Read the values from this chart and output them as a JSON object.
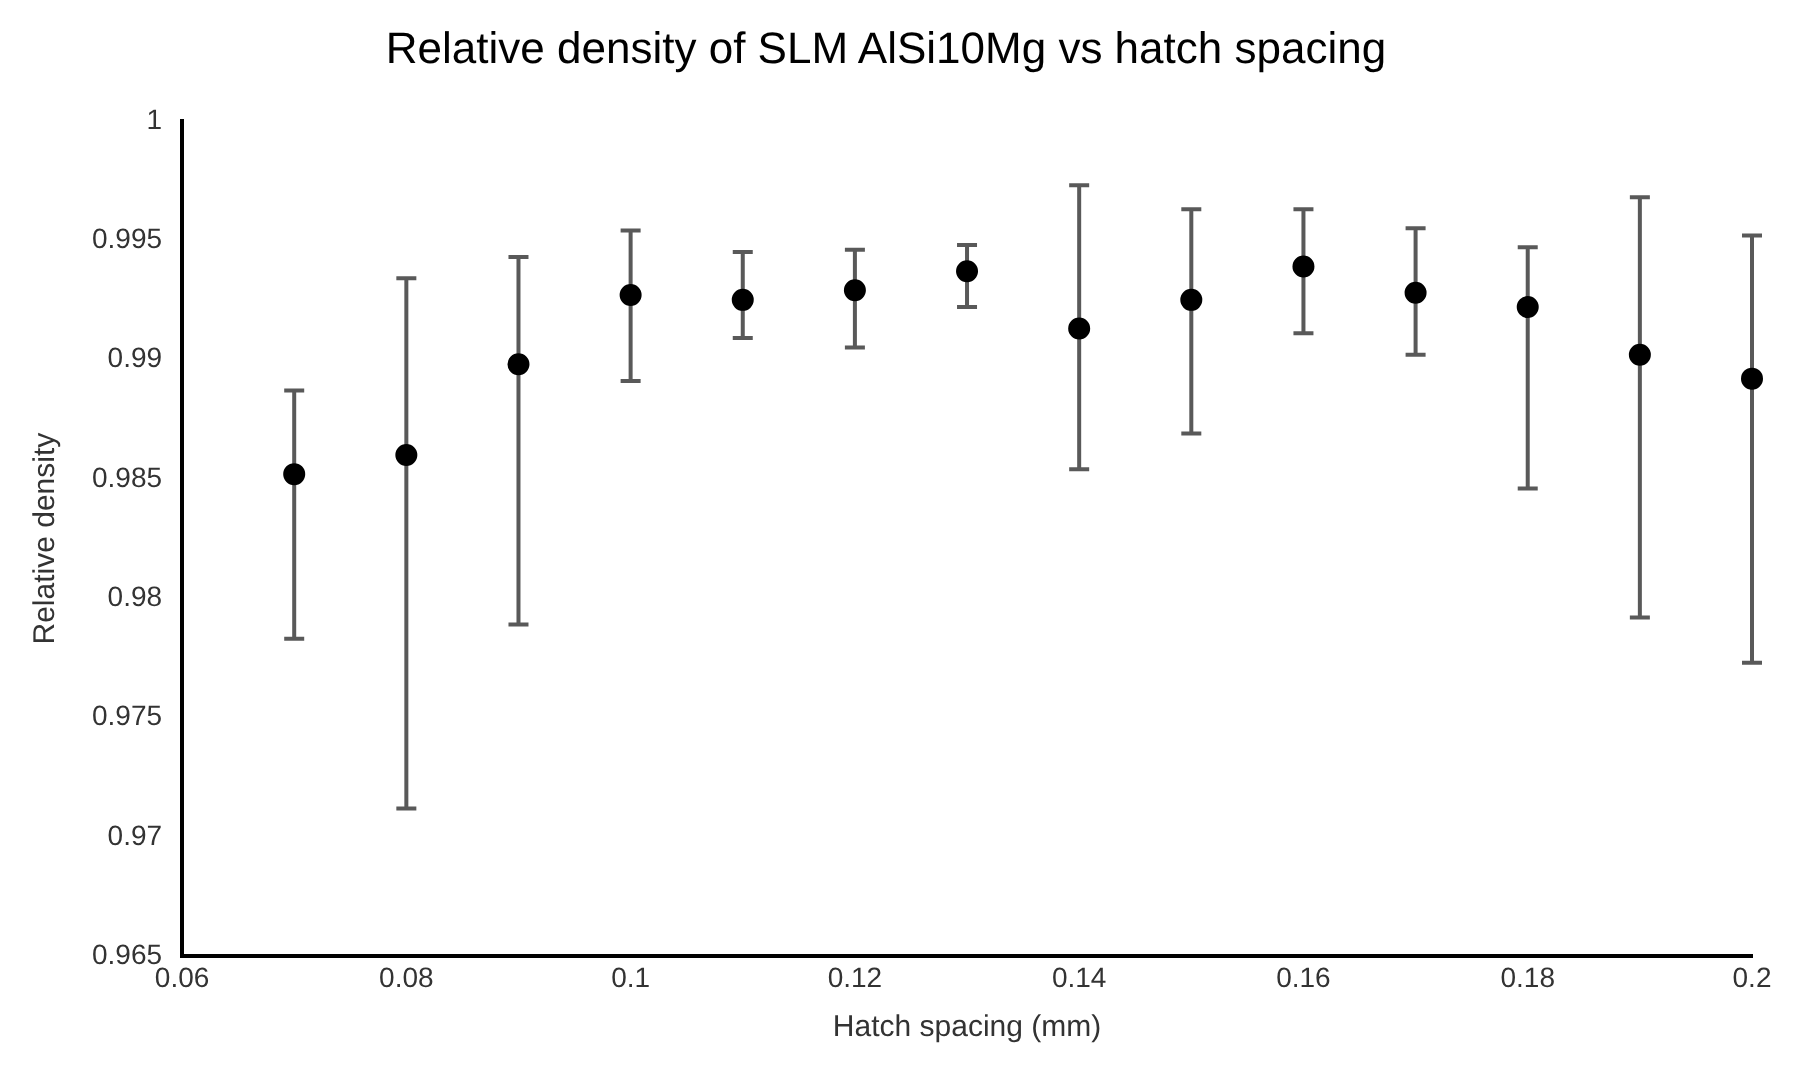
{
  "chart_data": {
    "type": "scatter",
    "title": "Relative density of SLM AlSi10Mg vs hatch spacing",
    "xlabel": "Hatch spacing (mm)",
    "ylabel": "Relative density",
    "x": [
      0.07,
      0.08,
      0.09,
      0.1,
      0.11,
      0.12,
      0.13,
      0.14,
      0.15,
      0.16,
      0.17,
      0.18,
      0.19,
      0.2
    ],
    "series": [
      {
        "color": "#000000",
        "values": [
          0.9852,
          0.986,
          0.9898,
          0.9927,
          0.9925,
          0.9929,
          0.9937,
          0.9913,
          0.9925,
          0.9939,
          0.9928,
          0.9922,
          0.9902,
          0.9892
        ],
        "errors": [
          [
            0.9783,
            0.9887
          ],
          [
            0.9712,
            0.9934
          ],
          [
            0.9789,
            0.9943
          ],
          [
            0.9891,
            0.9954
          ],
          [
            0.9909,
            0.9945
          ],
          [
            0.9905,
            0.9946
          ],
          [
            0.9922,
            0.9948
          ],
          [
            0.9854,
            0.9973
          ],
          [
            0.9869,
            0.9963
          ],
          [
            0.9911,
            0.9963
          ],
          [
            0.9902,
            0.9955
          ],
          [
            0.9846,
            0.9947
          ],
          [
            0.9792,
            0.9968
          ],
          [
            0.9773,
            0.9952
          ]
        ]
      }
    ],
    "xlim": [
      0.06,
      0.2
    ],
    "xticks": [
      0.06,
      0.08,
      0.1,
      0.12,
      0.14,
      0.16,
      0.18,
      0.2
    ],
    "ylim": [
      0.965,
      1
    ],
    "yticks": [
      0.965,
      0.97,
      0.975,
      0.98,
      0.985,
      0.99,
      0.995,
      1
    ],
    "grid": false,
    "legend": false,
    "marker": "circle"
  }
}
